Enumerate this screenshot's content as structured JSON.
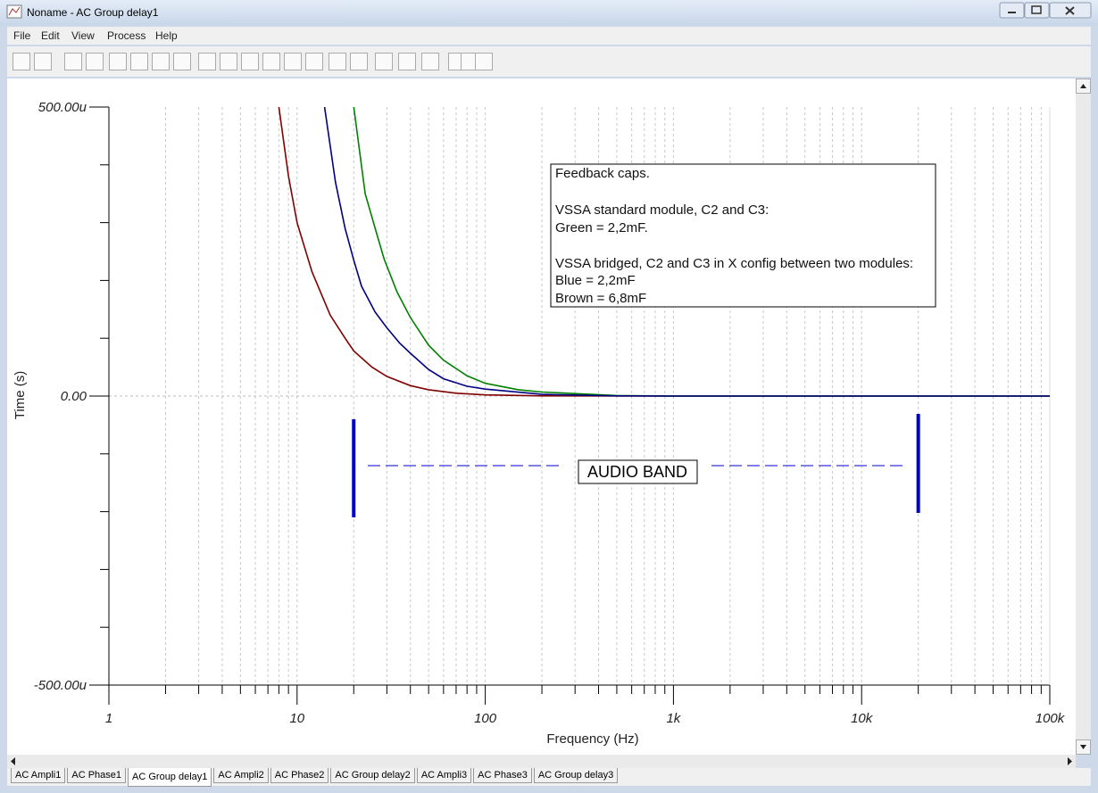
{
  "window": {
    "title": "Noname - AC Group delay1"
  },
  "menu": [
    "File",
    "Edit",
    "View",
    "Process",
    "Help"
  ],
  "tabs": {
    "items": [
      "AC Ampli1",
      "AC Phase1",
      "AC Group delay1",
      "AC Ampli2",
      "AC Phase2",
      "AC Group delay2",
      "AC Ampli3",
      "AC Phase3",
      "AC Group delay3"
    ],
    "active": 2
  },
  "chart_data": {
    "type": "line",
    "xlabel": "Frequency (Hz)",
    "ylabel": "Time (s)",
    "log_x": true,
    "grid": true,
    "xlim": [
      1,
      100000
    ],
    "xticks": [
      1,
      10,
      100,
      {
        "value": 1000,
        "label": "1k"
      },
      {
        "value": 10000,
        "label": "10k"
      },
      {
        "value": 100000,
        "label": "100k"
      }
    ],
    "xminor_ticks": [
      2,
      3,
      4,
      5,
      6,
      7,
      8,
      9,
      20,
      30,
      40,
      50,
      60,
      70,
      80,
      90,
      200,
      300,
      400,
      500,
      600,
      700,
      800,
      900,
      2000,
      3000,
      4000,
      5000,
      6000,
      7000,
      8000,
      9000,
      20000,
      30000,
      40000,
      50000,
      60000,
      70000,
      80000,
      90000
    ],
    "ylim": [
      -0.0005,
      0.0005
    ],
    "yticks": [
      {
        "value": -0.0005,
        "label": "-500.00u"
      },
      {
        "value": 0,
        "label": "0.00"
      },
      {
        "value": 0.0005,
        "label": "500.00u"
      }
    ],
    "yminor_ticks": [
      -0.0004,
      -0.0003,
      -0.0002,
      -0.0001,
      0.0001,
      0.0002,
      0.0003,
      0.0004
    ],
    "series": [
      {
        "color": "#800000",
        "x": [
          8,
          9,
          10,
          12,
          15,
          18,
          20,
          25,
          30,
          40,
          50,
          70,
          100,
          200,
          1000,
          100000
        ],
        "values": [
          0.0005,
          0.00038,
          0.0003,
          0.000215,
          0.00014,
          0.0001,
          7.8e-05,
          5e-05,
          3.4e-05,
          1.8e-05,
          1.1e-05,
          5e-06,
          2e-06,
          3e-07,
          0,
          0
        ]
      },
      {
        "color": "#008000",
        "x": [
          20,
          23,
          26,
          29,
          34,
          40,
          50,
          60,
          80,
          100,
          150,
          200,
          500,
          1000,
          100000
        ],
        "values": [
          0.0005,
          0.00035,
          0.00029,
          0.000237,
          0.00018,
          0.000136,
          8.8e-05,
          6.2e-05,
          3.5e-05,
          2.2e-05,
          1.1e-05,
          7e-06,
          1e-06,
          0,
          0
        ]
      },
      {
        "color": "#000080",
        "x": [
          14,
          16,
          18,
          20,
          22,
          26,
          30,
          35,
          40,
          50,
          60,
          80,
          100,
          200,
          500,
          1000,
          100000
        ],
        "values": [
          0.0005,
          0.00037,
          0.00029,
          0.000235,
          0.00019,
          0.000145,
          0.000118,
          9.2e-05,
          7.4e-05,
          4.6e-05,
          3e-05,
          1.7e-05,
          1.2e-05,
          3e-06,
          3e-07,
          0,
          0
        ]
      }
    ],
    "annotation": {
      "lines": [
        "Feedback caps.",
        "VSSA standard module, C2 and C3:",
        "Green = 2,2mF.",
        "VSSA bridged, C2 and C3 in X config between two modules:",
        "Blue = 2,2mF",
        "Brown = 6,8mF"
      ]
    },
    "audio_band": {
      "label": "AUDIO BAND",
      "x": [
        20,
        20000
      ],
      "color": "#0000cc"
    }
  }
}
